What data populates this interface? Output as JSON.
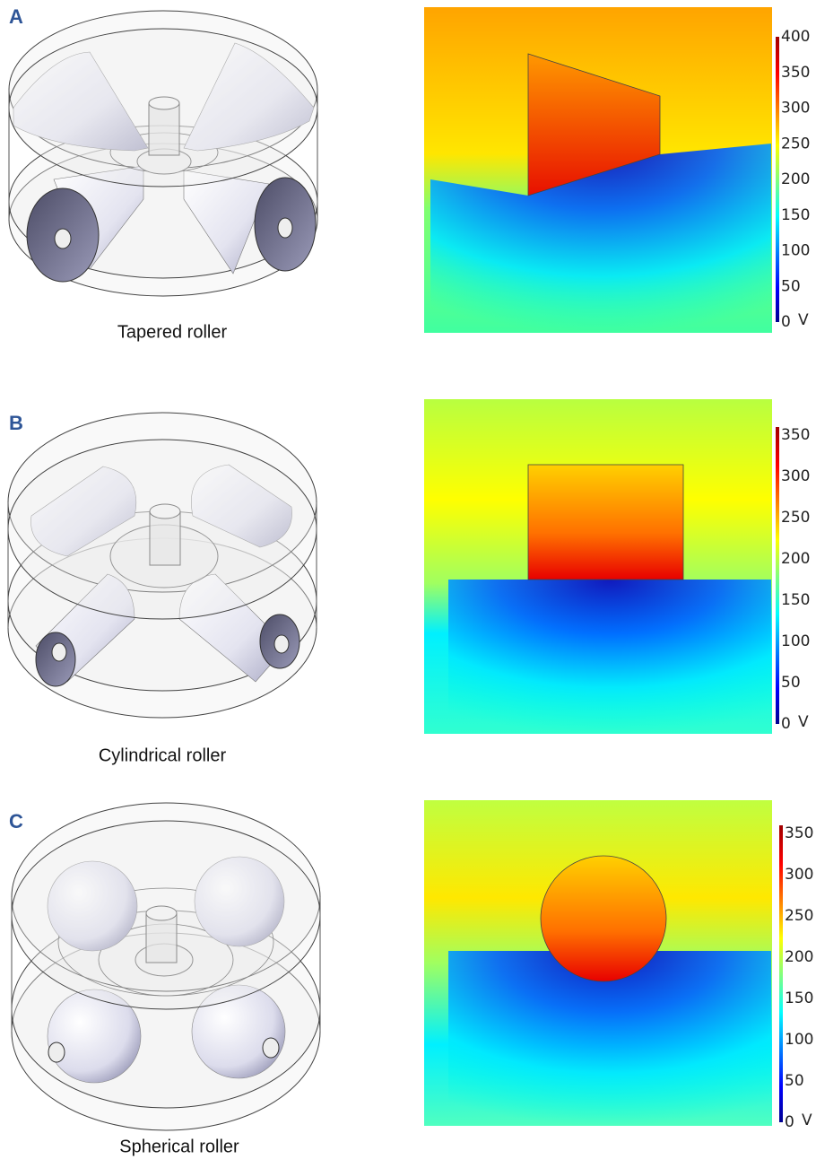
{
  "panels": [
    {
      "label": "A",
      "caption": "Tapered roller",
      "colorbar": {
        "lim": [
          0,
          400
        ],
        "ticks": [
          0,
          50,
          100,
          150,
          200,
          250,
          300,
          350,
          400
        ],
        "unit": "V"
      }
    },
    {
      "label": "B",
      "caption": "Cylindrical roller",
      "colorbar": {
        "lim": [
          0,
          360
        ],
        "ticks": [
          0,
          50,
          100,
          150,
          200,
          250,
          300,
          350
        ],
        "unit": "V"
      }
    },
    {
      "label": "C",
      "caption": "Spherical roller",
      "colorbar": {
        "lim": [
          0,
          360
        ],
        "ticks": [
          0,
          50,
          100,
          150,
          200,
          250,
          300,
          350
        ],
        "unit": "V"
      }
    }
  ]
}
